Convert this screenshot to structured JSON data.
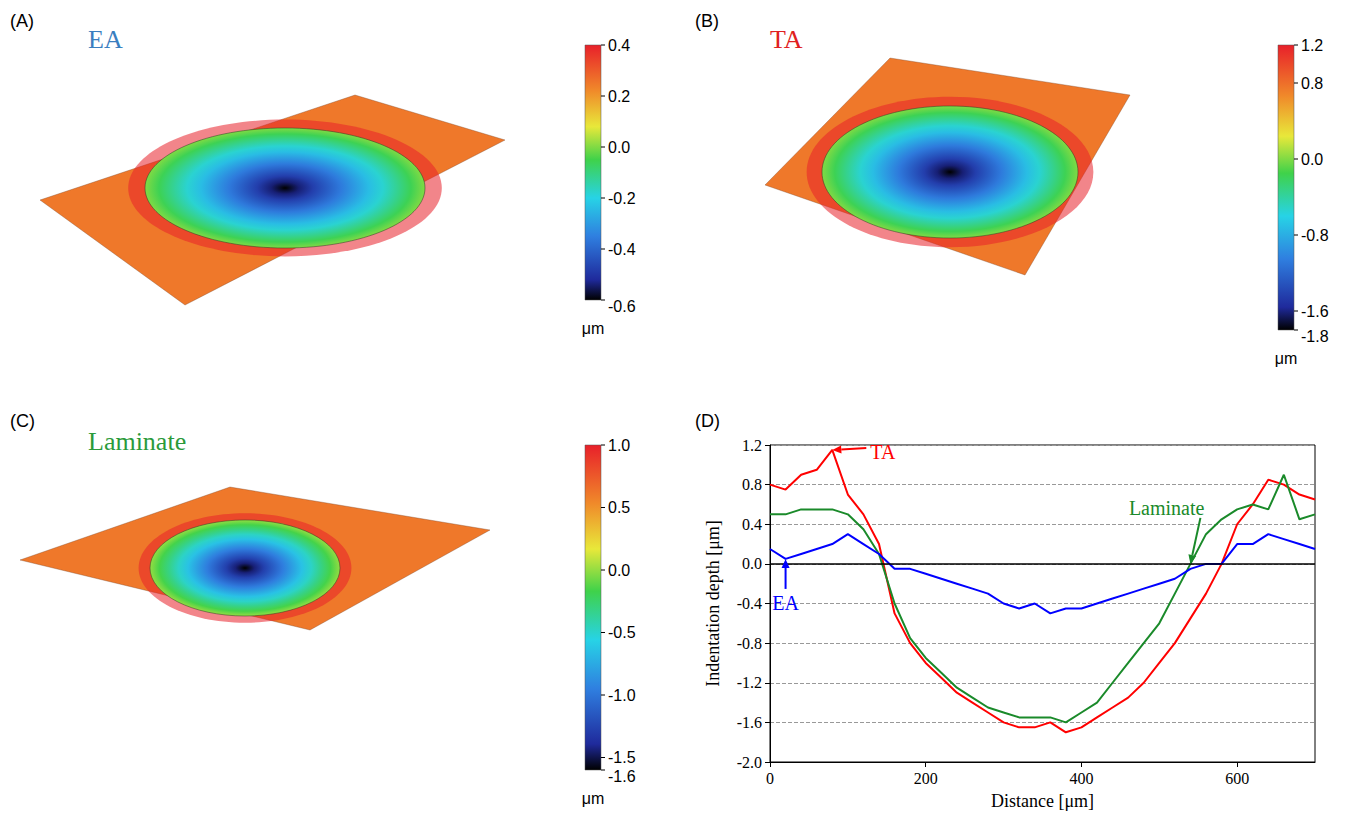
{
  "chart_data": [
    {
      "type": "surface",
      "label": "(A)",
      "title": "EA",
      "color": "#3a7ebf",
      "colorbar_range": [
        -0.6,
        0.4
      ],
      "colorbar_ticks": [
        {
          "value": 0.4,
          "label": "0.4"
        },
        0.2,
        {
          "value": 0,
          "label": "0.0"
        },
        -0.2,
        -0.4,
        -0.6
      ],
      "colorbar_unit": "μm"
    },
    {
      "type": "surface",
      "label": "(B)",
      "title": "TA",
      "color": "#e02020",
      "colorbar_range": [
        -1.8,
        1.2
      ],
      "colorbar_ticks": [
        1.2,
        0.8,
        {
          "value": 0,
          "label": "0.0"
        },
        -0.8,
        -1.6,
        -1.8
      ],
      "colorbar_unit": "μm"
    },
    {
      "type": "surface",
      "label": "(C)",
      "title": "Laminate",
      "color": "#2a9a3a",
      "colorbar_range": [
        -1.6,
        1.0
      ],
      "colorbar_ticks": [
        {
          "value": 1,
          "label": "1.0"
        },
        0.5,
        {
          "value": 0,
          "label": "0.0"
        },
        -0.5,
        {
          "value": -1,
          "label": "-1.0"
        },
        -1.5,
        -1.6
      ],
      "colorbar_unit": "μm"
    },
    {
      "type": "line",
      "label": "(D)",
      "xlabel": "Distance [μm]",
      "ylabel": "Indentation depth [μm]",
      "x": [
        0,
        20,
        40,
        60,
        80,
        100,
        120,
        140,
        160,
        180,
        200,
        220,
        240,
        260,
        280,
        300,
        320,
        340,
        360,
        380,
        400,
        420,
        440,
        460,
        480,
        500,
        520,
        540,
        560,
        580,
        600,
        620,
        640,
        660,
        680,
        700
      ],
      "series": [
        {
          "name": "TA",
          "color": "#ff0000",
          "values": [
            0.8,
            0.75,
            0.9,
            0.95,
            1.15,
            0.7,
            0.5,
            0.2,
            -0.5,
            -0.8,
            -1.0,
            -1.15,
            -1.3,
            -1.4,
            -1.5,
            -1.6,
            -1.65,
            -1.65,
            -1.6,
            -1.7,
            -1.65,
            -1.55,
            -1.45,
            -1.35,
            -1.2,
            -1.0,
            -0.8,
            -0.55,
            -0.3,
            0.0,
            0.4,
            0.6,
            0.85,
            0.8,
            0.7,
            0.65
          ]
        },
        {
          "name": "Laminate",
          "color": "#1a8a2a",
          "values": [
            0.5,
            0.5,
            0.55,
            0.55,
            0.55,
            0.5,
            0.35,
            0.1,
            -0.4,
            -0.75,
            -0.95,
            -1.1,
            -1.25,
            -1.35,
            -1.45,
            -1.5,
            -1.55,
            -1.55,
            -1.55,
            -1.6,
            -1.5,
            -1.4,
            -1.2,
            -1.0,
            -0.8,
            -0.6,
            -0.3,
            0.0,
            0.3,
            0.45,
            0.55,
            0.6,
            0.55,
            0.9,
            0.45,
            0.5
          ]
        },
        {
          "name": "EA",
          "color": "#0000ff",
          "values": [
            0.15,
            0.05,
            0.1,
            0.15,
            0.2,
            0.3,
            0.2,
            0.1,
            -0.05,
            -0.05,
            -0.1,
            -0.15,
            -0.2,
            -0.25,
            -0.3,
            -0.4,
            -0.45,
            -0.4,
            -0.5,
            -0.45,
            -0.45,
            -0.4,
            -0.35,
            -0.3,
            -0.25,
            -0.2,
            -0.15,
            -0.05,
            0.0,
            0.0,
            0.2,
            0.2,
            0.3,
            0.25,
            0.2,
            0.15
          ]
        }
      ],
      "annotations": [
        {
          "series": "TA",
          "x": 80
        },
        {
          "series": "Laminate",
          "x": 540
        },
        {
          "series": "EA",
          "x": 20
        }
      ],
      "hlines": [
        0
      ],
      "xlim": [
        0,
        700
      ],
      "xticks": [
        0,
        200,
        400,
        600
      ],
      "ylim": [
        -2.0,
        1.2
      ],
      "yticks": [
        {
          "value": -2,
          "label": "-2.0"
        },
        -1.6,
        -1.2,
        -0.8,
        -0.4,
        {
          "value": 0,
          "label": "0.0"
        },
        0.4,
        0.8,
        1.2
      ],
      "grid": true
    }
  ]
}
